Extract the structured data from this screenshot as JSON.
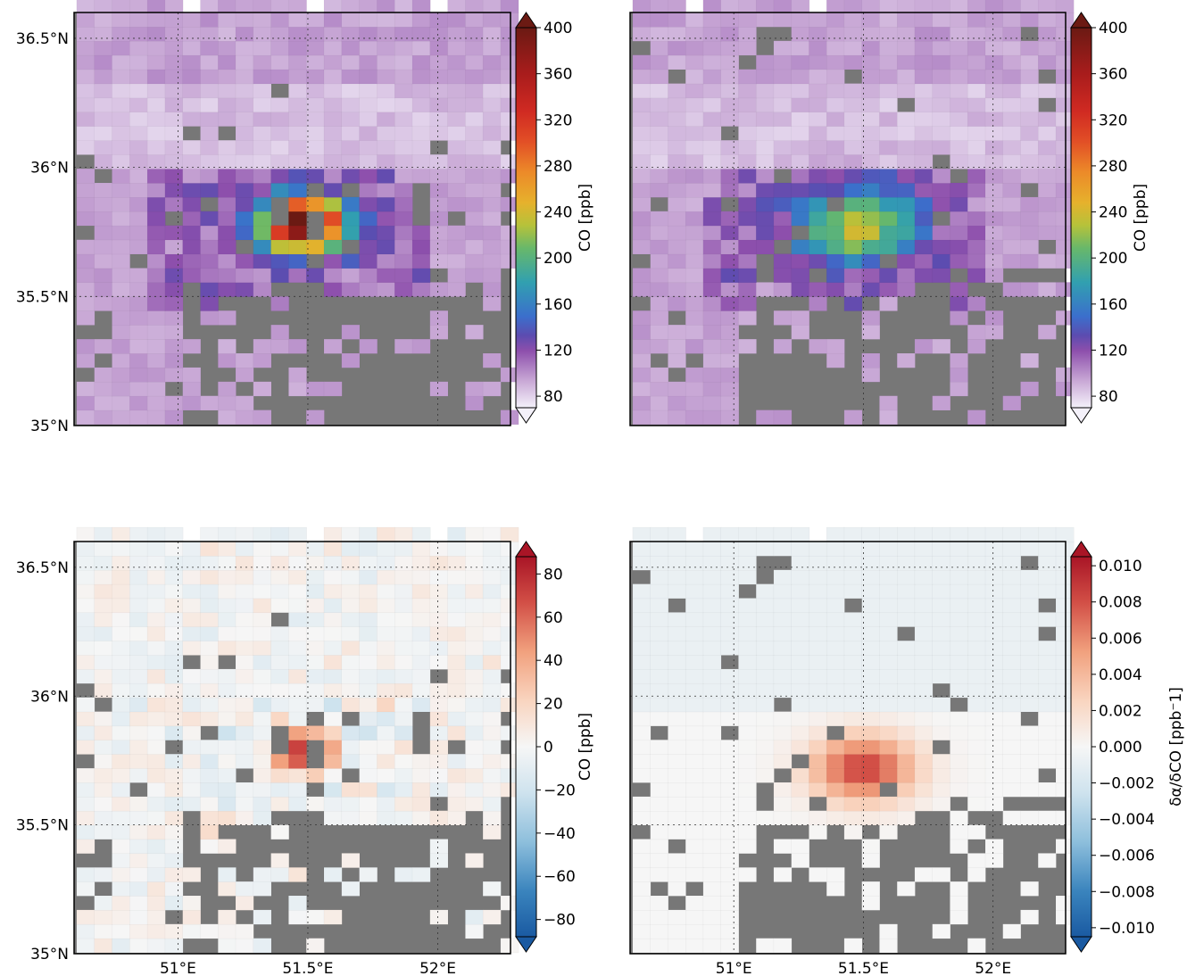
{
  "figure": {
    "background_color": "#ffffff",
    "missing_cell_color": "#777777"
  },
  "chart_data": [
    {
      "type": "heatmap",
      "id": "top-left",
      "xlim": [
        50.6,
        52.28
      ],
      "ylim": [
        35.0,
        36.6
      ],
      "x_ticks": [],
      "y_ticks": [
        "35°N",
        "35.5°N",
        "36°N",
        "36.5°N"
      ],
      "colorbar": {
        "label": "CO [ppb]",
        "ticks": [
          "80",
          "120",
          "160",
          "200",
          "240",
          "280",
          "320",
          "360",
          "400"
        ],
        "range": [
          70,
          400
        ],
        "colormap": "purple-blue-green-yellow-red",
        "extend": "both"
      },
      "grid": true,
      "description_of_field": "Background ~80-95 ppb; enhanced plume 150-400 ppb centered near 51.5°E, 35.8°N"
    },
    {
      "type": "heatmap",
      "id": "top-right",
      "xlim": [
        50.6,
        52.28
      ],
      "ylim": [
        35.0,
        36.6
      ],
      "x_ticks": [],
      "y_ticks": [],
      "colorbar": {
        "label": "CO [ppb]",
        "ticks": [
          "80",
          "120",
          "160",
          "200",
          "240",
          "280",
          "320",
          "360",
          "400"
        ],
        "range": [
          70,
          400
        ],
        "colormap": "purple-blue-green-yellow-red",
        "extend": "both"
      },
      "grid": true
    },
    {
      "type": "heatmap",
      "id": "bottom-left",
      "xlim": [
        50.6,
        52.28
      ],
      "ylim": [
        35.0,
        36.6
      ],
      "x_ticks": [
        "51°E",
        "51.5°E",
        "52°E"
      ],
      "y_ticks": [
        "35°N",
        "35.5°N",
        "36°N",
        "36.5°N"
      ],
      "colorbar": {
        "label": "CO [ppb]",
        "ticks": [
          "80",
          "60",
          "40",
          "20",
          "0",
          "−20",
          "−40",
          "−60",
          "−80"
        ],
        "range": [
          -88,
          88
        ],
        "colormap": "RdBu_r",
        "extend": "both"
      },
      "grid": true
    },
    {
      "type": "heatmap",
      "id": "bottom-right",
      "xlim": [
        50.6,
        52.28
      ],
      "ylim": [
        35.0,
        36.6
      ],
      "x_ticks": [
        "51°E",
        "51.5°E",
        "52°E"
      ],
      "y_ticks": [],
      "colorbar": {
        "label": "δα/δCO  [ppb⁻1]",
        "ticks": [
          "0.010",
          "0.008",
          "0.006",
          "0.004",
          "0.002",
          "0.000",
          "−0.002",
          "−0.004",
          "−0.006",
          "−0.008",
          "−0.010"
        ],
        "range": [
          -0.0105,
          0.0105
        ],
        "colormap": "RdBu_r",
        "extend": "both"
      },
      "grid": true
    }
  ]
}
